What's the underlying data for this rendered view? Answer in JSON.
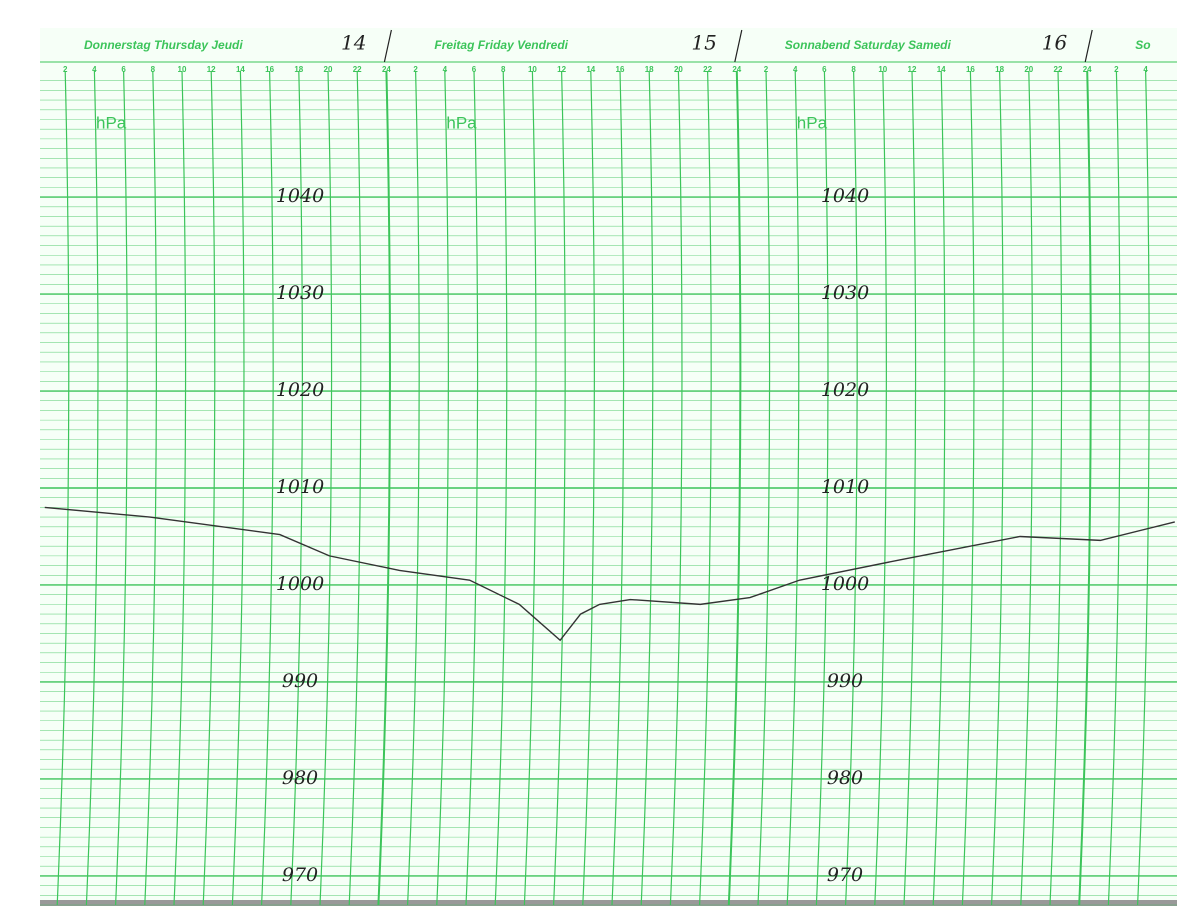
{
  "chart_data": {
    "type": "line",
    "day_headers": [
      {
        "label": "Donnerstag  Thursday  Jeudi",
        "date": "14",
        "start": 0
      },
      {
        "label": "Freitag  Friday  Vendredi",
        "date": "15",
        "start": 24
      },
      {
        "label": "Sonnabend  Saturday  Samedi",
        "date": "16",
        "start": 48
      },
      {
        "label": "So",
        "start": 72
      }
    ],
    "unit_label": "hPa",
    "x": [
      0.6,
      7.8,
      16.7,
      20.1,
      24.9,
      29.7,
      33.1,
      35.9,
      37.3,
      38.6,
      40.7,
      45.5,
      48.9,
      52.3,
      59.2,
      67.4,
      72.9,
      78
    ],
    "series": [
      {
        "color": "#333333",
        "values": [
          1008,
          1007,
          1005.2,
          1003,
          1001.5,
          1000.5,
          998,
          994.3,
          997,
          998,
          998.5,
          998,
          998.7,
          1000.5,
          1002.6,
          1005,
          1004.6,
          1006.5
        ]
      }
    ],
    "xlim": [
      0,
      78
    ],
    "xticks": [
      {
        "value": 2,
        "label": "2"
      },
      {
        "value": 4,
        "label": "4"
      },
      {
        "value": 6,
        "label": "6"
      },
      {
        "value": 8,
        "label": "8"
      },
      {
        "value": 10,
        "label": "10"
      },
      {
        "value": 12,
        "label": "12"
      },
      {
        "value": 14,
        "label": "14"
      },
      {
        "value": 16,
        "label": "16"
      },
      {
        "value": 18,
        "label": "18"
      },
      {
        "value": 20,
        "label": "20"
      },
      {
        "value": 22,
        "label": "22"
      },
      {
        "value": 24,
        "label": "24"
      },
      {
        "value": 26,
        "label": "2"
      },
      {
        "value": 28,
        "label": "4"
      },
      {
        "value": 30,
        "label": "6"
      },
      {
        "value": 32,
        "label": "8"
      },
      {
        "value": 34,
        "label": "10"
      },
      {
        "value": 36,
        "label": "12"
      },
      {
        "value": 38,
        "label": "14"
      },
      {
        "value": 40,
        "label": "16"
      },
      {
        "value": 42,
        "label": "18"
      },
      {
        "value": 44,
        "label": "20"
      },
      {
        "value": 46,
        "label": "22"
      },
      {
        "value": 48,
        "label": "24"
      },
      {
        "value": 50,
        "label": "2"
      },
      {
        "value": 52,
        "label": "4"
      },
      {
        "value": 54,
        "label": "6"
      },
      {
        "value": 56,
        "label": "8"
      },
      {
        "value": 58,
        "label": "10"
      },
      {
        "value": 60,
        "label": "12"
      },
      {
        "value": 62,
        "label": "14"
      },
      {
        "value": 64,
        "label": "16"
      },
      {
        "value": 66,
        "label": "18"
      },
      {
        "value": 68,
        "label": "20"
      },
      {
        "value": 70,
        "label": "22"
      },
      {
        "value": 72,
        "label": "24"
      },
      {
        "value": 74,
        "label": "2"
      },
      {
        "value": 76,
        "label": "4"
      }
    ],
    "ylim": [
      967,
      1053
    ],
    "yticks": [
      970,
      980,
      990,
      1000,
      1010,
      1020,
      1030,
      1040
    ],
    "grid": true,
    "grid_color": "#3cc45a"
  }
}
